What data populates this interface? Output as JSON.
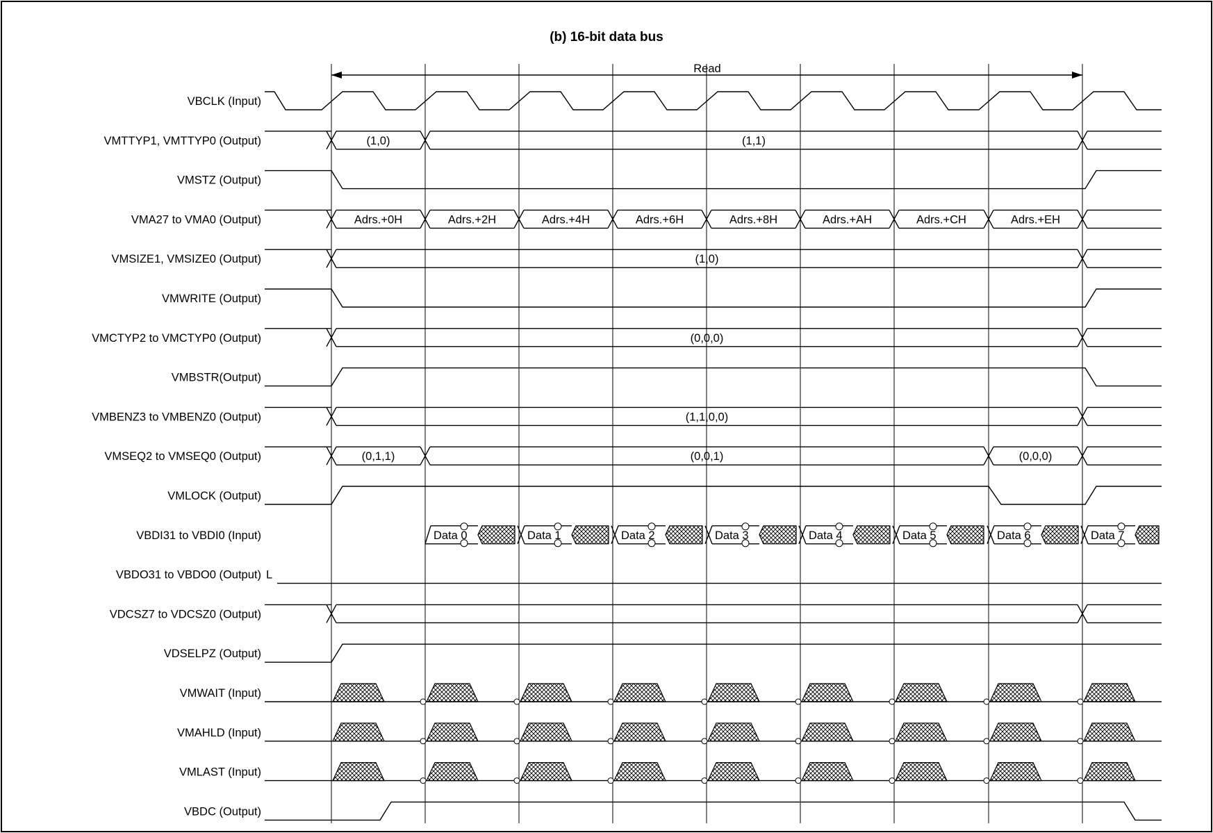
{
  "title": "(b)  16-bit data bus",
  "read_label": "Read",
  "signals": [
    {
      "label": "VBCLK (Input)",
      "kind": "clock"
    },
    {
      "label": "VMTTYP1, VMTTYP0 (Output)",
      "kind": "bus",
      "segments": [
        "(1,0)",
        "(1,1)"
      ]
    },
    {
      "label": "VMSTZ (Output)",
      "kind": "falling_low_rising"
    },
    {
      "label": "VMA27 to VMA0 (Output)",
      "kind": "bus",
      "segments": [
        "Adrs.+0H",
        "Adrs.+2H",
        "Adrs.+4H",
        "Adrs.+6H",
        "Adrs.+8H",
        "Adrs.+AH",
        "Adrs.+CH",
        "Adrs.+EH"
      ]
    },
    {
      "label": "VMSIZE1, VMSIZE0 (Output)",
      "kind": "bus",
      "segments": [
        "(1,0)"
      ]
    },
    {
      "label": "VMWRITE (Output)",
      "kind": "falling_low_rising"
    },
    {
      "label": "VMCTYP2 to VMCTYP0 (Output)",
      "kind": "bus",
      "segments": [
        "(0,0,0)"
      ]
    },
    {
      "label": "VMBSTR(Output)",
      "kind": "rising_high_falling"
    },
    {
      "label": "VMBENZ3 to VMBENZ0 (Output)",
      "kind": "bus",
      "segments": [
        "(1,1,0,0)"
      ]
    },
    {
      "label": "VMSEQ2 to VMSEQ0 (Output)",
      "kind": "bus",
      "segments": [
        "(0,1,1)",
        "(0,0,1)",
        "(0,0,0)"
      ]
    },
    {
      "label": "VMLOCK (Output)",
      "kind": "lock"
    },
    {
      "label": "VBDI31 to VBDI0 (Input)",
      "kind": "data",
      "segments": [
        "Data 0",
        "Data 1",
        "Data 2",
        "Data 3",
        "Data 4",
        "Data 5",
        "Data 6",
        "Data 7"
      ]
    },
    {
      "label": "VBDO31 to VBDO0 (Output)",
      "kind": "low_const",
      "suffix": "L"
    },
    {
      "label": "VDCSZ7 to VDCSZ0 (Output)",
      "kind": "bus",
      "segments": [
        ""
      ]
    },
    {
      "label": "VDSELPZ (Output)",
      "kind": "rising_high"
    },
    {
      "label": "VMWAIT (Input)",
      "kind": "sampled"
    },
    {
      "label": "VMAHLD (Input)",
      "kind": "sampled"
    },
    {
      "label": "VMLAST (Input)",
      "kind": "sampled"
    },
    {
      "label": "VBDC (Output)",
      "kind": "vbdc"
    }
  ],
  "colors": {
    "line": "#000000",
    "background": "#ffffff"
  }
}
